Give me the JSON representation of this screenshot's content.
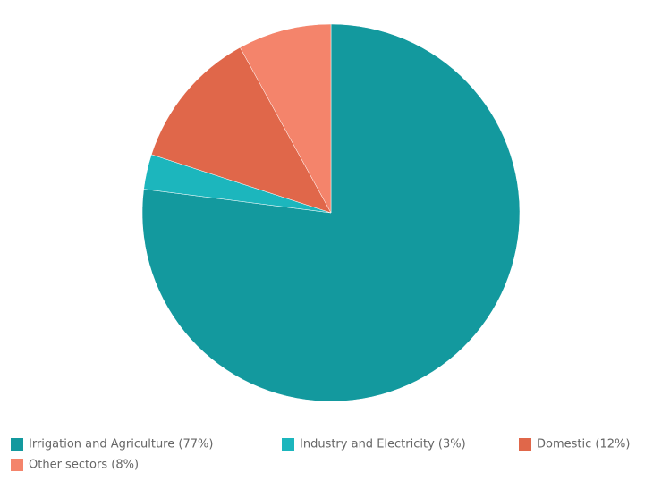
{
  "chart_data": {
    "type": "pie",
    "categories": [
      "Irrigation and Agriculture (77%)",
      "Industry and Electricity (3%)",
      "Domestic (12%)",
      "Other sectors (8%)"
    ],
    "values": [
      77,
      3,
      12,
      8
    ],
    "colors": [
      "#13999e",
      "#1cb6bd",
      "#e0674a",
      "#f4846b"
    ],
    "legend": "bottom"
  }
}
